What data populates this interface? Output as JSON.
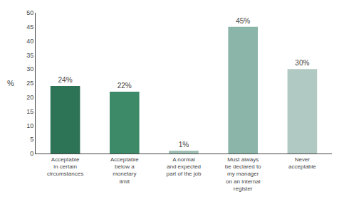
{
  "chart_data": {
    "type": "bar",
    "categories": [
      "Acceptable\nin certain\ncircumstances",
      "Acceptable\nbelow a\nmonetary\nlimit",
      "A normal\nand expected\npart of the job",
      "Must always\nbe declared to\nmy manager\non an internal\nregister",
      "Never\nacceptable"
    ],
    "values": [
      24,
      22,
      1,
      45,
      30
    ],
    "value_labels": [
      "24%",
      "22%",
      "1%",
      "45%",
      "30%"
    ],
    "colors": [
      "#2d7356",
      "#3d8a68",
      "#a0bfb5",
      "#8ab5a8",
      "#b0c9c2"
    ],
    "ylabel": "%",
    "ylim": [
      0,
      50
    ],
    "yticks": [
      0,
      5,
      10,
      15,
      20,
      25,
      30,
      35,
      40,
      45,
      50
    ],
    "grid": false,
    "data_labels": true
  }
}
